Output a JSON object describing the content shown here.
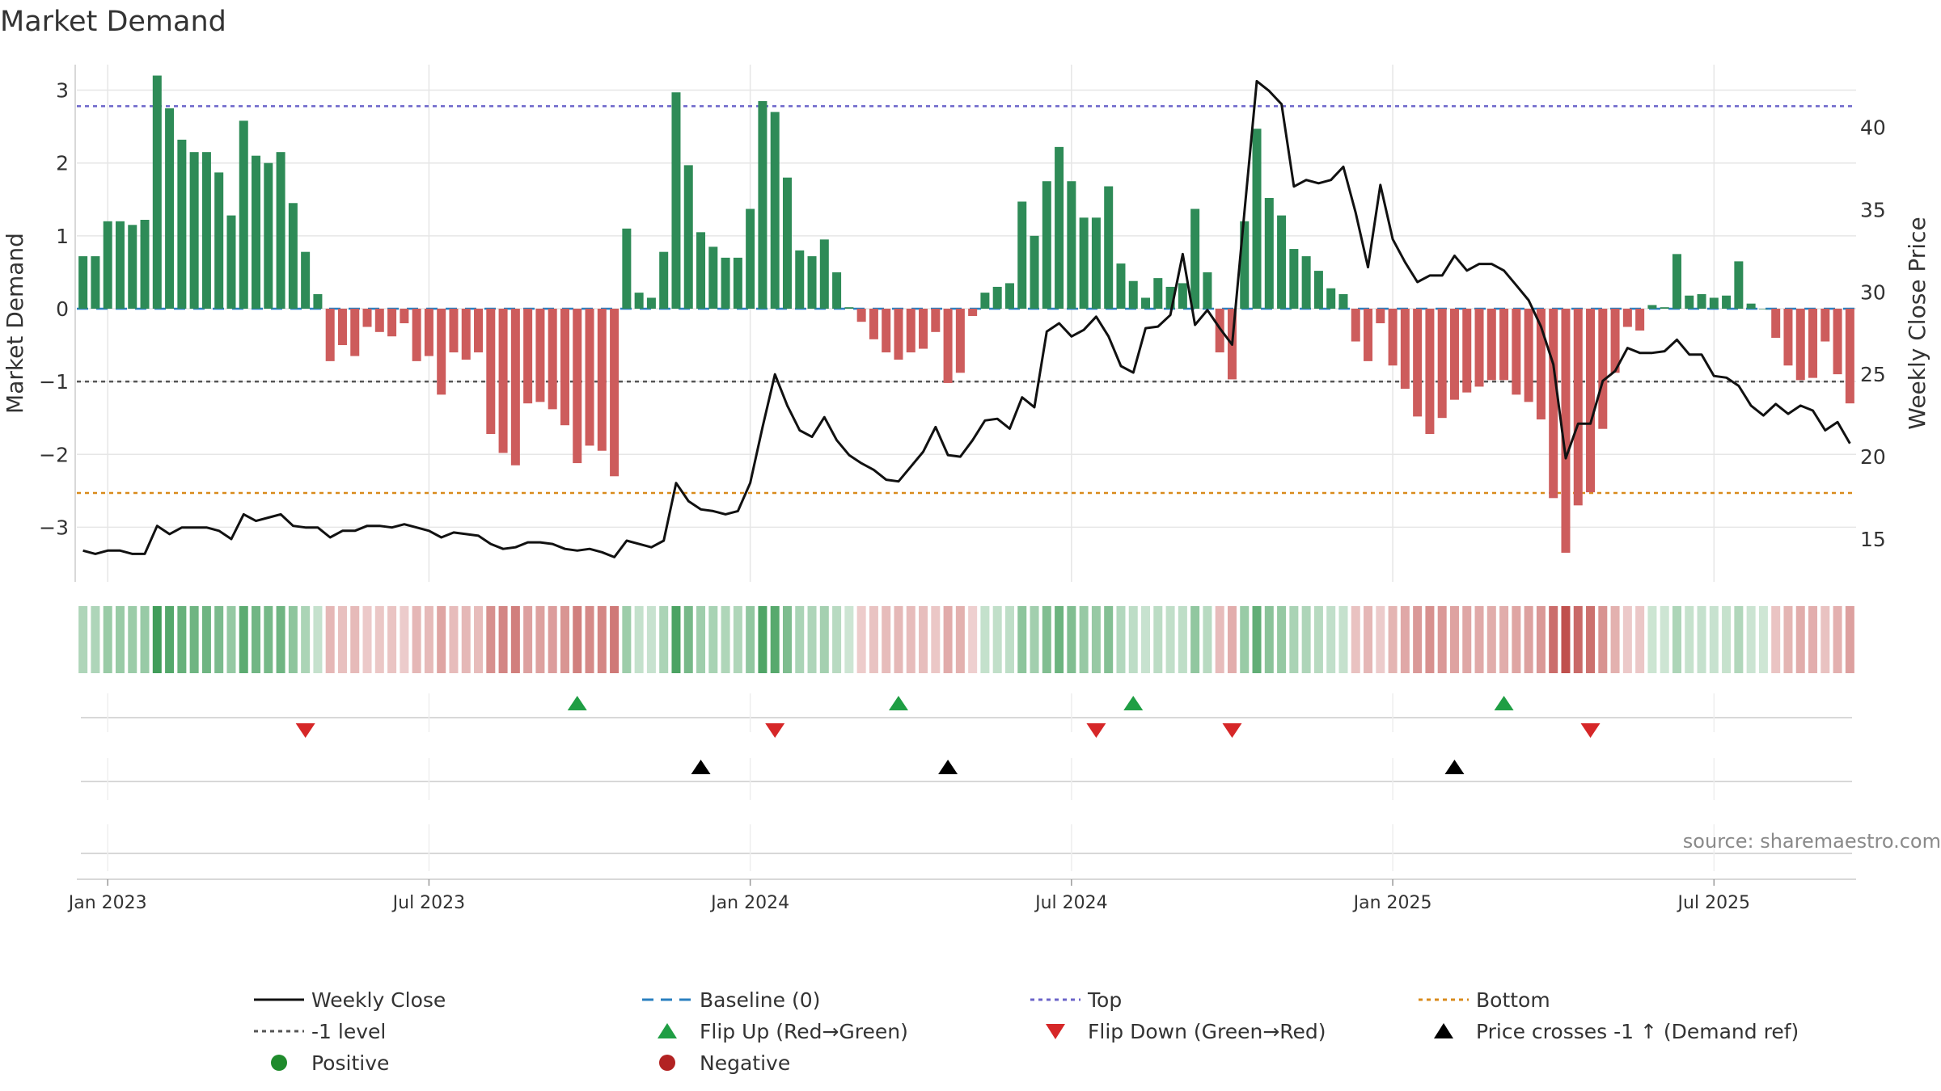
{
  "chart_data": {
    "type": "bar",
    "title": "Market Demand",
    "ylabel": "Market Demand",
    "y2label": "Weekly Close Price",
    "ylim": [
      -3.75,
      3.35
    ],
    "y2lim": [
      12.4,
      43.8
    ],
    "yticks": [
      3,
      2,
      1,
      0,
      -1,
      -2,
      -3
    ],
    "ytick_labels": [
      "3",
      "2",
      "1",
      "0",
      "−1",
      "−2",
      "−3"
    ],
    "y2ticks": [
      40,
      35,
      30,
      25,
      20,
      15
    ],
    "y2tick_labels": [
      "40",
      "35",
      "30",
      "25",
      "20",
      "15"
    ],
    "xtick_labels": [
      "Jan 2023",
      "Jul 2023",
      "Jan 2024",
      "Jul 2024",
      "Jan 2025",
      "Jul 2025"
    ],
    "xtick_weeks": [
      2,
      28,
      54,
      80,
      106,
      132
    ],
    "reference_lines": {
      "top": 2.78,
      "bottom": -2.53,
      "minus_one": -1,
      "baseline": 0
    },
    "demand": [
      0.72,
      0.72,
      1.2,
      1.2,
      1.15,
      1.22,
      3.2,
      2.75,
      2.32,
      2.15,
      2.15,
      1.87,
      1.28,
      2.58,
      2.1,
      2.0,
      2.15,
      1.45,
      0.78,
      0.2,
      -0.72,
      -0.5,
      -0.65,
      -0.25,
      -0.32,
      -0.38,
      -0.2,
      -0.72,
      -0.65,
      -1.18,
      -0.6,
      -0.7,
      -0.6,
      -1.72,
      -1.98,
      -2.15,
      -1.3,
      -1.28,
      -1.38,
      -1.6,
      -2.12,
      -1.88,
      -1.95,
      -2.3,
      1.1,
      0.22,
      0.15,
      0.78,
      2.97,
      1.97,
      1.05,
      0.85,
      0.7,
      0.7,
      1.37,
      2.85,
      2.7,
      1.8,
      0.8,
      0.72,
      0.95,
      0.5,
      0.02,
      -0.18,
      -0.42,
      -0.6,
      -0.7,
      -0.6,
      -0.55,
      -0.32,
      -1.02,
      -0.88,
      -0.1,
      0.22,
      0.3,
      0.35,
      1.47,
      1.0,
      1.75,
      2.22,
      1.75,
      1.25,
      1.25,
      1.68,
      0.62,
      0.38,
      0.15,
      0.42,
      0.3,
      0.35,
      1.37,
      0.5,
      -0.6,
      -0.97,
      1.2,
      2.47,
      1.52,
      1.28,
      0.82,
      0.72,
      0.52,
      0.28,
      0.2,
      -0.45,
      -0.72,
      -0.2,
      -0.78,
      -1.1,
      -1.48,
      -1.72,
      -1.5,
      -1.25,
      -1.15,
      -1.07,
      -0.98,
      -0.98,
      -1.18,
      -1.28,
      -1.52,
      -2.6,
      -3.35,
      -2.7,
      -2.52,
      -1.65,
      -0.88,
      -0.25,
      -0.3,
      0.05,
      0.02,
      0.75,
      0.18,
      0.2,
      0.15,
      0.18,
      0.65,
      0.07,
      0.0,
      -0.4,
      -0.78,
      -0.98,
      -0.95,
      -0.45,
      -0.9,
      -1.3
    ],
    "series": [
      {
        "name": "Weekly Close",
        "values": [
          14.3,
          14.1,
          14.3,
          14.3,
          14.1,
          14.1,
          15.8,
          15.3,
          15.7,
          15.7,
          15.7,
          15.5,
          15.0,
          16.5,
          16.1,
          16.3,
          16.5,
          15.8,
          15.7,
          15.7,
          15.1,
          15.5,
          15.5,
          15.8,
          15.8,
          15.7,
          15.9,
          15.7,
          15.5,
          15.1,
          15.4,
          15.3,
          15.2,
          14.7,
          14.4,
          14.5,
          14.8,
          14.8,
          14.7,
          14.4,
          14.3,
          14.4,
          14.2,
          13.9,
          14.9,
          14.7,
          14.5,
          14.9,
          18.4,
          17.3,
          16.8,
          16.7,
          16.5,
          16.7,
          18.4,
          21.8,
          25.0,
          23.1,
          21.6,
          21.2,
          22.4,
          21.0,
          20.1,
          19.6,
          19.2,
          18.6,
          18.5,
          19.4,
          20.3,
          21.8,
          20.1,
          20.0,
          21.0,
          22.2,
          22.3,
          21.7,
          23.6,
          23.0,
          27.6,
          28.1,
          27.3,
          27.7,
          28.5,
          27.3,
          25.5,
          25.1,
          27.8,
          27.9,
          28.6,
          32.3,
          28.0,
          28.9,
          27.8,
          26.8,
          34.9,
          42.8,
          42.2,
          41.4,
          36.4,
          36.8,
          36.6,
          36.8,
          37.6,
          34.8,
          31.5,
          36.5,
          33.2,
          31.8,
          30.6,
          31.0,
          31.0,
          32.2,
          31.3,
          31.7,
          31.7,
          31.3,
          30.4,
          29.5,
          27.9,
          25.6,
          19.9,
          22.0,
          22.0,
          24.6,
          25.2,
          26.6,
          26.3,
          26.3,
          26.4,
          27.1,
          26.2,
          26.2,
          24.9,
          24.8,
          24.3,
          23.1,
          22.5,
          23.2,
          22.6,
          23.1,
          22.8,
          21.6,
          22.1,
          20.8
        ]
      },
      {
        "name": "Market Demand",
        "values_key": "demand"
      }
    ],
    "flip_up_weeks": [
      40,
      66,
      85,
      115
    ],
    "flip_down_weeks": [
      18,
      56,
      82,
      93,
      122
    ],
    "price_cross_weeks": [
      50,
      70,
      111
    ],
    "legend": [
      {
        "label": "Weekly Close",
        "type": "line",
        "color": "#111111",
        "dash": "solid"
      },
      {
        "label": "Baseline (0)",
        "type": "line",
        "color": "#2a7fbf",
        "dash": "long"
      },
      {
        "label": "Top",
        "type": "line",
        "color": "#6b64c9",
        "dash": "dotted"
      },
      {
        "label": "Bottom",
        "type": "line",
        "color": "#d98b1c",
        "dash": "dotted"
      },
      {
        "label": "-1 level",
        "type": "line",
        "color": "#555555",
        "dash": "dotted"
      },
      {
        "label": "Flip Up (Red→Green)",
        "type": "tri-up",
        "color": "#1f9e44"
      },
      {
        "label": "Flip Down (Green→Red)",
        "type": "tri-down",
        "color": "#d62728"
      },
      {
        "label": "Price crosses -1 ↑ (Demand ref)",
        "type": "tri-up",
        "color": "#000000"
      },
      {
        "label": "Positive",
        "type": "dot",
        "color": "#1f8b2c"
      },
      {
        "label": "Negative",
        "type": "dot",
        "color": "#b22222"
      }
    ],
    "legend_placement": "bottom",
    "source_note": "source: sharemaestro.com",
    "colors": {
      "positive_bar": "#2e8b57",
      "negative_bar": "#cd5c5c",
      "price_line": "#111111",
      "heat_positive": "#3a9a54",
      "heat_negative": "#c0504d",
      "flip_up": "#1f9e44",
      "flip_down": "#d62728",
      "cross_marker": "#000000",
      "grid": "#e6e6e6"
    }
  }
}
